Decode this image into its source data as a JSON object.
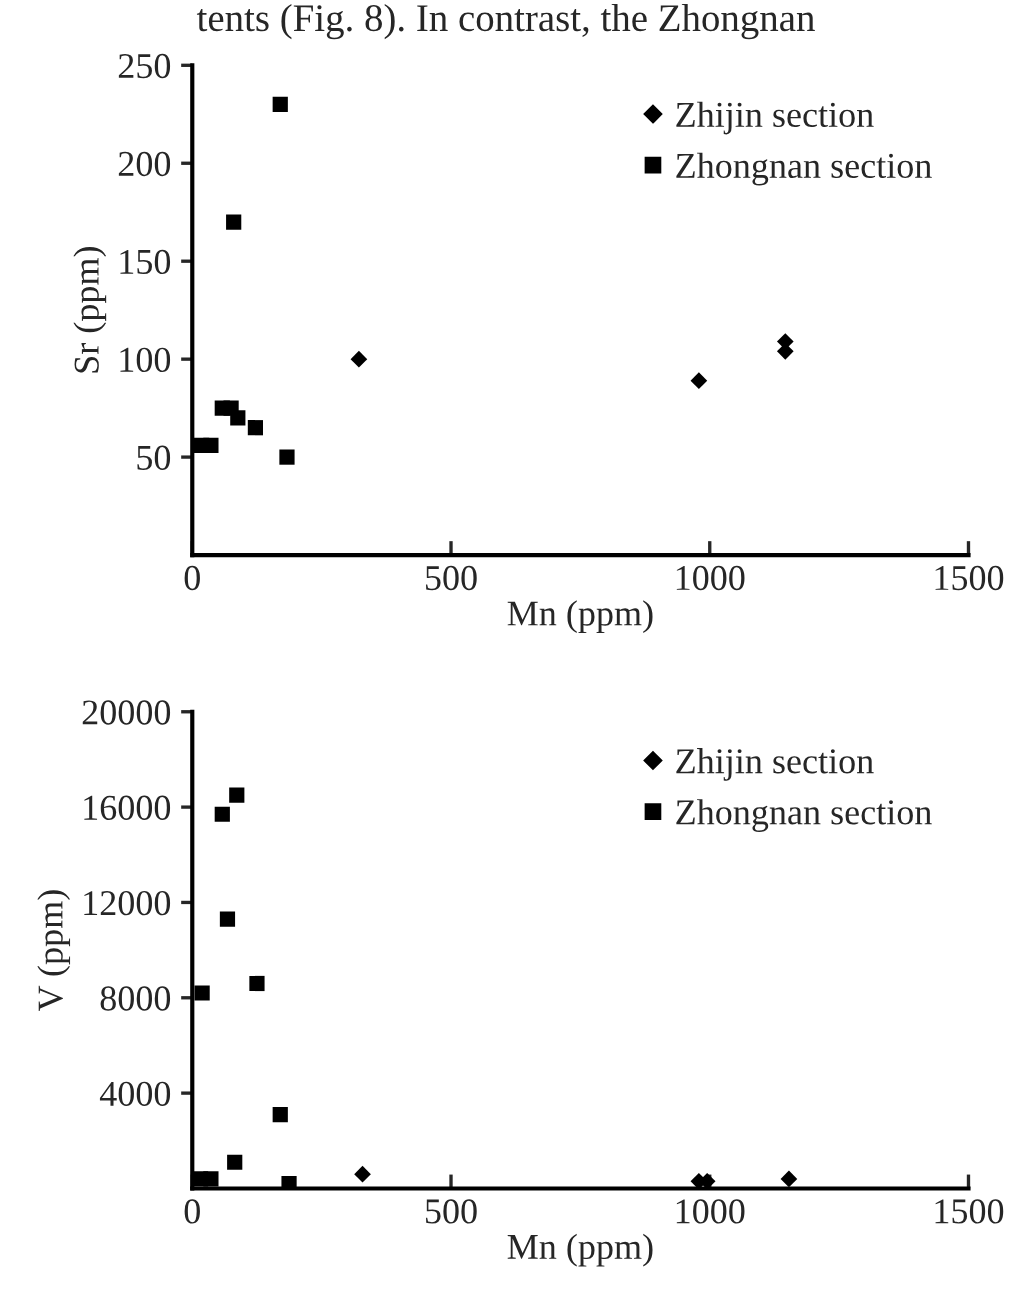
{
  "chart_data": [
    {
      "type": "scatter",
      "annotations": [
        "tents (Fig. 8). In contrast, the Zhongnan"
      ],
      "xlabel": "Mn (ppm)",
      "ylabel": "Sr (ppm)",
      "xlim": [
        0,
        1500
      ],
      "xticks": [
        0,
        500,
        1000,
        1500
      ],
      "ylim": [
        0,
        250
      ],
      "yticks": [
        50,
        100,
        150,
        200,
        250
      ],
      "grid": false,
      "legend": "top right",
      "series": [
        {
          "name": "Zhijin section",
          "color": "#000000",
          "marker": "diamond",
          "x": [
            322,
            979,
            1146,
            1146
          ],
          "values": [
            100,
            89,
            109,
            104
          ]
        },
        {
          "name": "Zhongnan section",
          "color": "#000000",
          "marker": "square",
          "x": [
            170,
            80,
            18,
            36,
            58,
            75,
            88,
            122,
            183
          ],
          "values": [
            230,
            170,
            56,
            56,
            75,
            75,
            70,
            65,
            50
          ]
        }
      ]
    },
    {
      "type": "scatter",
      "xlabel": "Mn (ppm)",
      "ylabel": "V (ppm)",
      "xlim": [
        0,
        1500
      ],
      "xticks": [
        0,
        500,
        1000,
        1500
      ],
      "ylim": [
        0,
        20000
      ],
      "yticks": [
        4000,
        8000,
        12000,
        16000,
        20000
      ],
      "grid": false,
      "legend": "top right",
      "series": [
        {
          "name": "Zhijin section",
          "color": "#000000",
          "marker": "diamond",
          "x": [
            329,
            979,
            995,
            1153
          ],
          "values": [
            600,
            300,
            300,
            400
          ]
        },
        {
          "name": "Zhongnan section",
          "color": "#000000",
          "marker": "square",
          "x": [
            86,
            58,
            68,
            19,
            125,
            170,
            82,
            16,
            36,
            187
          ],
          "values": [
            16500,
            15700,
            11300,
            8200,
            8600,
            3100,
            1100,
            400,
            400,
            200
          ]
        }
      ]
    }
  ]
}
